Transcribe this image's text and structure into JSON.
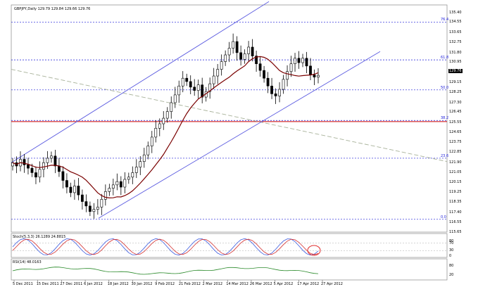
{
  "window": {
    "title": "GBPJPY,Daily",
    "ohlc": "129.79 129.84 129.66 129.76",
    "current_price": "129.76"
  },
  "colors": {
    "background": "#ffffff",
    "grid": "#c8c8c8",
    "fib_line": "#1a1ad8",
    "channel": "#5a5ae0",
    "ma": "#7a0000",
    "horizontal": "#cc0000",
    "trend": "#a8b29a",
    "stoch_main": "#3a5ae0",
    "stoch_signal": "#d43030",
    "rsi": "#2a8a2a",
    "highlight": "#e03030"
  },
  "price_axis": {
    "ticks": [
      "135.40",
      "134.55",
      "133.65",
      "132.75",
      "131.80",
      "130.95",
      "130.05",
      "129.15",
      "128.25",
      "127.30",
      "126.45",
      "125.55",
      "124.65",
      "123.75",
      "122.85",
      "121.90",
      "121.05",
      "120.15",
      "119.25",
      "118.35",
      "117.40",
      "116.55",
      "115.65"
    ],
    "ymin": 115.65,
    "ymax": 135.4
  },
  "fib_levels": [
    {
      "label": "76.4",
      "value": 134.55
    },
    {
      "label": "61.8",
      "value": 131.15
    },
    {
      "label": "50.0",
      "value": 128.45
    },
    {
      "label": "38.2",
      "value": 125.7
    },
    {
      "label": "23.6",
      "value": 122.3
    },
    {
      "label": "0.0",
      "value": 116.8
    }
  ],
  "horizontal_level": 125.6,
  "stoch": {
    "label": "Stoch(5,3,3) 26.1289 24.8815",
    "ticks": [
      "80",
      "70",
      "30",
      "0"
    ]
  },
  "rsi": {
    "label": "RSI(14) 48.0163",
    "ticks": [
      "80",
      "20"
    ]
  },
  "time_axis": [
    "5 Dec 2011",
    "15 Dec 2011",
    "27 Dec 2011",
    "6 Jan 2012",
    "18 Jan 2012",
    "30 Jan 2012",
    "9 Feb 2012",
    "21 Feb 2012",
    "2 Mar 2012",
    "14 Mar 2012",
    "26 Mar 2012",
    "5 Apr 2012",
    "17 Apr 2012",
    "27 Apr 2012"
  ],
  "chart_data": {
    "type": "candlestick",
    "title": "GBPJPY,Daily",
    "close": [
      121.9,
      121.6,
      122.2,
      121.7,
      121.4,
      121.0,
      120.6,
      121.3,
      121.9,
      122.3,
      122.5,
      121.6,
      121.1,
      120.3,
      119.7,
      119.2,
      119.8,
      119.0,
      118.4,
      118.0,
      117.5,
      117.7,
      117.9,
      118.6,
      119.3,
      119.6,
      119.9,
      120.2,
      119.7,
      120.4,
      120.6,
      121.0,
      121.5,
      122.0,
      122.6,
      123.4,
      124.2,
      125.0,
      125.4,
      125.9,
      126.5,
      127.3,
      128.0,
      128.8,
      129.5,
      129.2,
      128.7,
      128.4,
      128.9,
      127.8,
      128.3,
      129.0,
      129.7,
      130.3,
      131.0,
      131.6,
      132.2,
      132.8,
      131.8,
      131.2,
      131.7,
      132.3,
      131.5,
      130.8,
      130.2,
      129.5,
      128.8,
      128.1,
      127.9,
      128.5,
      129.4,
      130.1,
      130.8,
      131.3,
      130.9,
      131.3,
      130.6,
      129.8,
      129.6,
      129.76
    ],
    "ma_period": 50,
    "ylim": [
      115.65,
      135.4
    ]
  }
}
